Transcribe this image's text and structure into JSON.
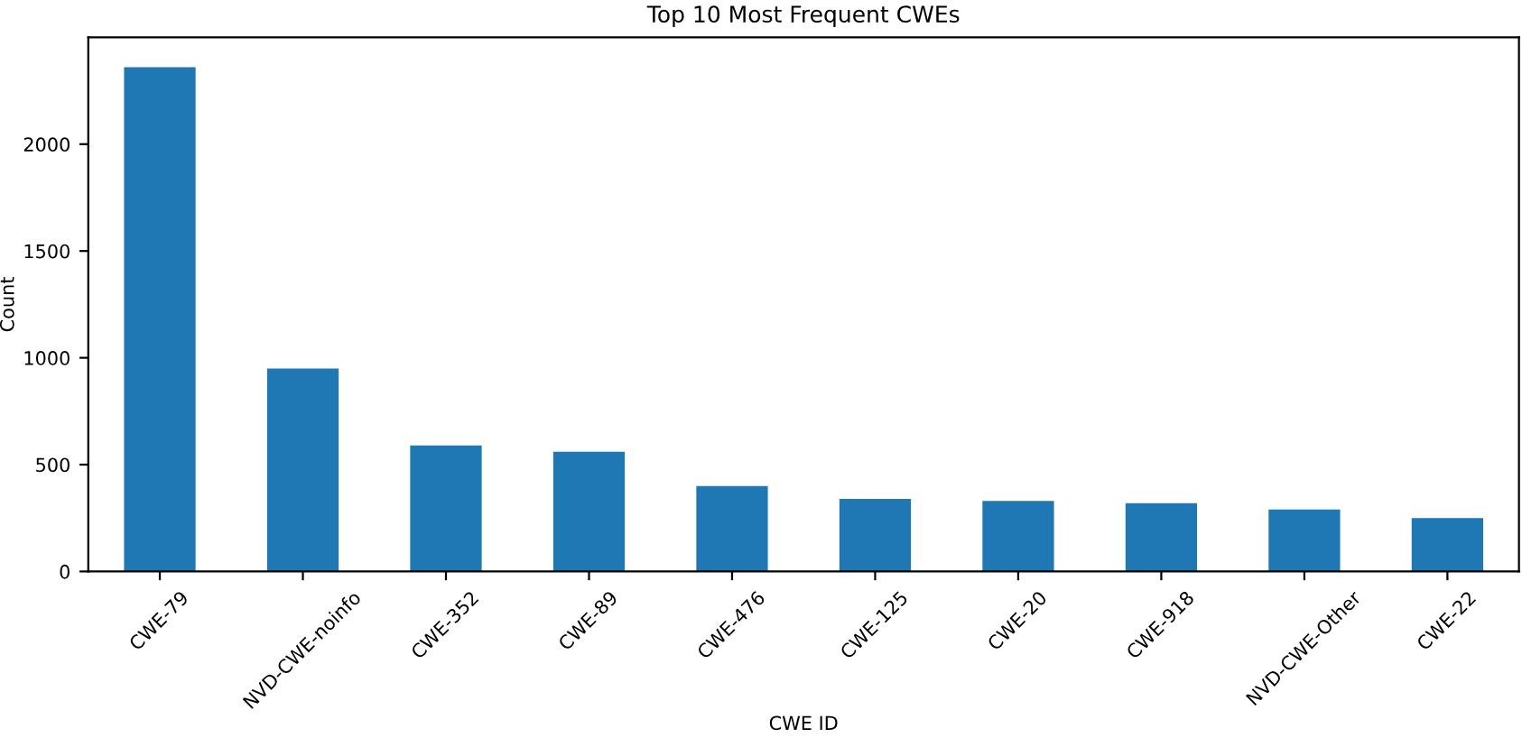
{
  "chart_data": {
    "type": "bar",
    "title": "Top 10 Most Frequent CWEs",
    "xlabel": "CWE ID",
    "ylabel": "Count",
    "categories": [
      "CWE-79",
      "NVD-CWE-noinfo",
      "CWE-352",
      "CWE-89",
      "CWE-476",
      "CWE-125",
      "CWE-20",
      "CWE-918",
      "NVD-CWE-Other",
      "CWE-22"
    ],
    "values": [
      2360,
      950,
      590,
      560,
      400,
      340,
      330,
      320,
      290,
      250
    ],
    "color": "#1f77b4",
    "ylim": [
      0,
      2500
    ],
    "yticks": [
      0,
      500,
      1000,
      1500,
      2000
    ],
    "grid": false
  }
}
